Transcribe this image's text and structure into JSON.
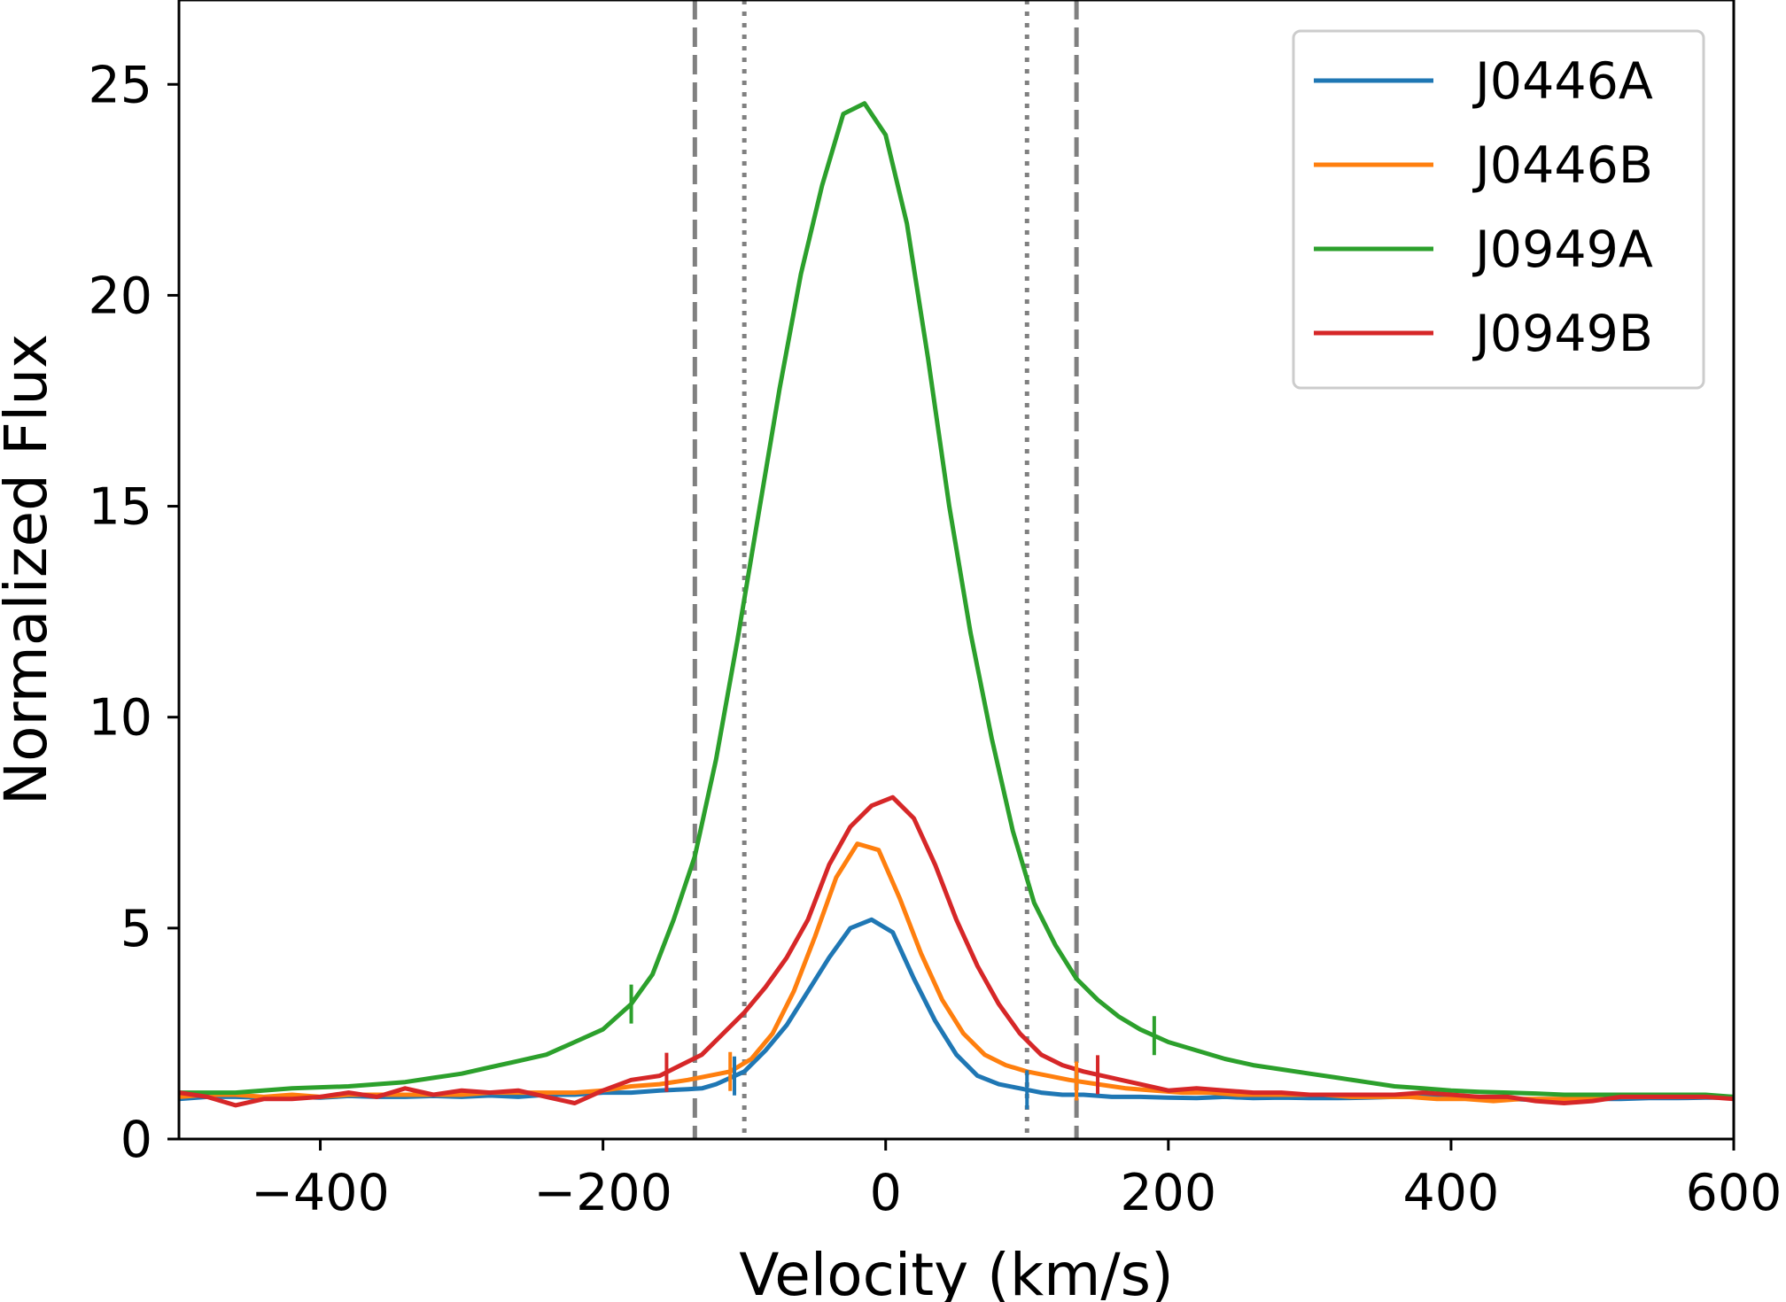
{
  "chart_data": {
    "type": "line",
    "title": "",
    "xlabel": "Velocity (km/s)",
    "ylabel": "Normalized Flux",
    "xlim": [
      -500,
      600
    ],
    "ylim": [
      0,
      27
    ],
    "xticks": [
      -400,
      -200,
      0,
      200,
      400,
      600
    ],
    "xtick_labels": [
      "−400",
      "−200",
      "0",
      "200",
      "400",
      "600"
    ],
    "yticks": [
      0,
      5,
      10,
      15,
      20,
      25
    ],
    "ytick_labels": [
      "0",
      "5",
      "10",
      "15",
      "20",
      "25"
    ],
    "legend_position": "top-right",
    "vertical_lines": [
      {
        "x": -135,
        "style": "dashed",
        "color": "#808080"
      },
      {
        "x": 135,
        "style": "dashed",
        "color": "#808080"
      },
      {
        "x": -100,
        "style": "dotted",
        "color": "#808080"
      },
      {
        "x": 100,
        "style": "dotted",
        "color": "#808080"
      }
    ],
    "series": [
      {
        "name": "J0446A",
        "color": "#1f77b4",
        "x": [
          -500,
          -480,
          -460,
          -440,
          -420,
          -400,
          -380,
          -360,
          -340,
          -320,
          -300,
          -280,
          -260,
          -240,
          -220,
          -200,
          -180,
          -160,
          -140,
          -130,
          -120,
          -100,
          -85,
          -70,
          -55,
          -40,
          -25,
          -10,
          5,
          20,
          35,
          50,
          65,
          80,
          95,
          110,
          125,
          140,
          160,
          180,
          200,
          220,
          240,
          260,
          280,
          300,
          320,
          340,
          360,
          380,
          400,
          420,
          440,
          460,
          480,
          500,
          520,
          540,
          560,
          580,
          600
        ],
        "values": [
          0.95,
          1.0,
          1.0,
          0.98,
          1.0,
          0.98,
          1.02,
          1.0,
          1.0,
          1.02,
          1.0,
          1.03,
          1.0,
          1.05,
          1.05,
          1.1,
          1.1,
          1.15,
          1.18,
          1.2,
          1.3,
          1.6,
          2.1,
          2.7,
          3.5,
          4.3,
          5.0,
          5.2,
          4.9,
          3.8,
          2.8,
          2.0,
          1.5,
          1.3,
          1.2,
          1.1,
          1.05,
          1.05,
          1.0,
          1.0,
          0.98,
          0.97,
          1.0,
          0.97,
          0.98,
          0.97,
          0.97,
          0.98,
          1.0,
          1.0,
          1.0,
          0.95,
          0.95,
          0.93,
          0.93,
          0.95,
          0.95,
          0.97,
          0.97,
          0.98,
          0.98
        ]
      },
      {
        "name": "J0446B",
        "color": "#ff7f0e",
        "x": [
          -500,
          -480,
          -460,
          -440,
          -420,
          -400,
          -380,
          -360,
          -340,
          -320,
          -300,
          -280,
          -260,
          -240,
          -220,
          -200,
          -180,
          -160,
          -140,
          -125,
          -110,
          -95,
          -80,
          -65,
          -50,
          -35,
          -20,
          -5,
          10,
          25,
          40,
          55,
          70,
          85,
          100,
          115,
          130,
          150,
          170,
          190,
          210,
          230,
          250,
          270,
          290,
          310,
          330,
          350,
          370,
          390,
          410,
          430,
          450,
          470,
          490,
          510,
          530,
          550,
          570,
          600
        ],
        "values": [
          1.0,
          1.05,
          1.05,
          1.0,
          1.05,
          1.0,
          1.05,
          1.05,
          1.05,
          1.05,
          1.05,
          1.1,
          1.1,
          1.1,
          1.1,
          1.15,
          1.25,
          1.3,
          1.4,
          1.5,
          1.6,
          1.9,
          2.5,
          3.5,
          4.8,
          6.2,
          7.0,
          6.85,
          5.7,
          4.4,
          3.3,
          2.5,
          2.0,
          1.75,
          1.6,
          1.5,
          1.4,
          1.3,
          1.2,
          1.15,
          1.1,
          1.1,
          1.05,
          1.05,
          1.05,
          1.05,
          1.0,
          1.0,
          1.0,
          0.95,
          0.95,
          0.9,
          0.95,
          0.95,
          0.95,
          1.0,
          1.0,
          1.0,
          1.0,
          1.0
        ]
      },
      {
        "name": "J0949A",
        "color": "#2ca02c",
        "x": [
          -500,
          -460,
          -420,
          -380,
          -340,
          -320,
          -300,
          -280,
          -260,
          -240,
          -220,
          -200,
          -180,
          -165,
          -150,
          -135,
          -120,
          -105,
          -90,
          -75,
          -60,
          -45,
          -30,
          -15,
          0,
          15,
          30,
          45,
          60,
          75,
          90,
          105,
          120,
          135,
          150,
          165,
          180,
          200,
          220,
          240,
          260,
          280,
          300,
          320,
          340,
          360,
          380,
          400,
          420,
          440,
          460,
          480,
          500,
          520,
          540,
          560,
          580,
          600
        ],
        "values": [
          1.1,
          1.1,
          1.2,
          1.25,
          1.35,
          1.45,
          1.55,
          1.7,
          1.85,
          2.0,
          2.3,
          2.6,
          3.2,
          3.9,
          5.2,
          6.7,
          9.0,
          11.8,
          14.8,
          17.8,
          20.5,
          22.6,
          24.3,
          24.55,
          23.8,
          21.7,
          18.5,
          15.0,
          12.0,
          9.5,
          7.3,
          5.6,
          4.6,
          3.8,
          3.3,
          2.9,
          2.6,
          2.3,
          2.1,
          1.9,
          1.75,
          1.65,
          1.55,
          1.45,
          1.35,
          1.25,
          1.2,
          1.15,
          1.12,
          1.1,
          1.08,
          1.05,
          1.05,
          1.05,
          1.05,
          1.05,
          1.05,
          1.0
        ]
      },
      {
        "name": "J0949B",
        "color": "#d62728",
        "x": [
          -500,
          -480,
          -460,
          -440,
          -420,
          -400,
          -380,
          -360,
          -340,
          -320,
          -300,
          -280,
          -260,
          -240,
          -220,
          -200,
          -180,
          -160,
          -145,
          -130,
          -115,
          -100,
          -85,
          -70,
          -55,
          -40,
          -25,
          -10,
          5,
          20,
          35,
          50,
          65,
          80,
          95,
          110,
          125,
          140,
          160,
          180,
          200,
          220,
          240,
          260,
          280,
          300,
          320,
          340,
          360,
          380,
          400,
          420,
          440,
          460,
          480,
          500,
          520,
          540,
          560,
          580,
          600
        ],
        "values": [
          1.1,
          1.0,
          0.8,
          0.95,
          0.95,
          1.0,
          1.1,
          1.0,
          1.2,
          1.05,
          1.15,
          1.1,
          1.15,
          1.0,
          0.85,
          1.15,
          1.4,
          1.5,
          1.75,
          2.0,
          2.5,
          3.0,
          3.6,
          4.3,
          5.2,
          6.5,
          7.4,
          7.9,
          8.1,
          7.6,
          6.5,
          5.2,
          4.1,
          3.2,
          2.5,
          2.0,
          1.75,
          1.6,
          1.45,
          1.3,
          1.15,
          1.2,
          1.15,
          1.1,
          1.1,
          1.05,
          1.05,
          1.05,
          1.05,
          1.1,
          1.05,
          1.0,
          1.0,
          0.9,
          0.85,
          0.9,
          1.0,
          1.0,
          1.0,
          1.0,
          0.95
        ]
      }
    ],
    "tick_markers": [
      {
        "series": "J0446A",
        "x": [
          -107,
          100
        ]
      },
      {
        "series": "J0446B",
        "x": [
          -110,
          135
        ]
      },
      {
        "series": "J0949A",
        "x": [
          -180,
          190
        ]
      },
      {
        "series": "J0949B",
        "x": [
          -155,
          150
        ]
      }
    ]
  }
}
